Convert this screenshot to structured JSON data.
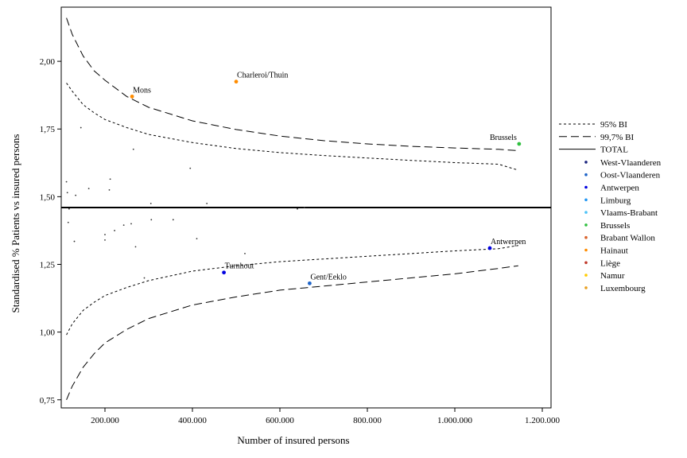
{
  "chart_data": {
    "type": "scatter",
    "xlabel": "Number of insured persons",
    "ylabel": "Standardised % Patients vs insured persons",
    "xlim": [
      100000,
      1220000
    ],
    "ylim": [
      0.72,
      2.2
    ],
    "x_ticks": [
      {
        "value": 200000,
        "label": "200.000"
      },
      {
        "value": 400000,
        "label": "400.000"
      },
      {
        "value": 600000,
        "label": "600.000"
      },
      {
        "value": 800000,
        "label": "800.000"
      },
      {
        "value": 1000000,
        "label": "1.000.000"
      },
      {
        "value": 1200000,
        "label": "1.200.000"
      }
    ],
    "y_ticks": [
      {
        "value": 0.75,
        "label": "0,75"
      },
      {
        "value": 1.0,
        "label": "1,00"
      },
      {
        "value": 1.25,
        "label": "1,25"
      },
      {
        "value": 1.5,
        "label": "1,50"
      },
      {
        "value": 1.75,
        "label": "1,75"
      },
      {
        "value": 2.0,
        "label": "2,00"
      }
    ],
    "total": 1.46,
    "limits": {
      "x": [
        112000,
        125000,
        150000,
        175000,
        200000,
        250000,
        300000,
        400000,
        500000,
        600000,
        700000,
        800000,
        900000,
        1000000,
        1100000,
        1145000
      ],
      "upper_95": [
        1.92,
        1.89,
        1.84,
        1.81,
        1.785,
        1.755,
        1.73,
        1.7,
        1.678,
        1.663,
        1.652,
        1.643,
        1.634,
        1.626,
        1.62,
        1.598
      ],
      "lower_95": [
        0.99,
        1.03,
        1.08,
        1.11,
        1.135,
        1.165,
        1.19,
        1.225,
        1.245,
        1.26,
        1.27,
        1.28,
        1.29,
        1.3,
        1.308,
        1.32
      ],
      "upper_997": [
        2.16,
        2.1,
        2.02,
        1.965,
        1.93,
        1.87,
        1.83,
        1.78,
        1.748,
        1.724,
        1.707,
        1.695,
        1.686,
        1.68,
        1.675,
        1.67
      ],
      "lower_997": [
        0.75,
        0.8,
        0.87,
        0.92,
        0.96,
        1.01,
        1.05,
        1.1,
        1.13,
        1.155,
        1.17,
        1.185,
        1.2,
        1.215,
        1.235,
        1.245
      ]
    },
    "legend": {
      "position": "right",
      "lines": [
        {
          "label": "95% BI",
          "style": "short-dash"
        },
        {
          "label": "99,7% BI",
          "style": "long-dash"
        },
        {
          "label": "TOTAL",
          "style": "solid"
        }
      ],
      "provinces": [
        {
          "label": "West-Vlaanderen",
          "color": "#1a237e"
        },
        {
          "label": "Oost-Vlaanderen",
          "color": "#1e64c8"
        },
        {
          "label": "Antwerpen",
          "color": "#0000e0"
        },
        {
          "label": "Limburg",
          "color": "#2196f3"
        },
        {
          "label": "Vlaams-Brabant",
          "color": "#4fc3f7"
        },
        {
          "label": "Brussels",
          "color": "#2fbf3f"
        },
        {
          "label": "Brabant Wallon",
          "color": "#d9622b"
        },
        {
          "label": "Hainaut",
          "color": "#ff8c00"
        },
        {
          "label": "Liège",
          "color": "#c0392b"
        },
        {
          "label": "Namur",
          "color": "#ffcc00"
        },
        {
          "label": "Luxembourg",
          "color": "#e8a020"
        }
      ]
    },
    "labeled_points": [
      {
        "label": "Charleroi/Thuin",
        "x": 500000,
        "y": 1.925,
        "color": "#ff8c00",
        "anchor": "end-right"
      },
      {
        "label": "Mons",
        "x": 262000,
        "y": 1.87,
        "color": "#ff8c00",
        "anchor": "right"
      },
      {
        "label": "Brussels",
        "x": 1147000,
        "y": 1.695,
        "color": "#2fbf3f",
        "anchor": "left"
      },
      {
        "label": "Antwerpen",
        "x": 1080000,
        "y": 1.31,
        "color": "#0000e0",
        "anchor": "right"
      },
      {
        "label": "Turnhout",
        "x": 472000,
        "y": 1.22,
        "color": "#0000e0",
        "anchor": "right"
      },
      {
        "label": "Gent/Eeklo",
        "x": 668000,
        "y": 1.18,
        "color": "#1e64c8",
        "anchor": "right"
      }
    ],
    "points": [
      {
        "x": 112000,
        "y": 1.555
      },
      {
        "x": 114000,
        "y": 1.515
      },
      {
        "x": 116000,
        "y": 1.405
      },
      {
        "x": 118000,
        "y": 1.455
      },
      {
        "x": 130000,
        "y": 1.335
      },
      {
        "x": 133000,
        "y": 1.505
      },
      {
        "x": 145000,
        "y": 1.755
      },
      {
        "x": 163000,
        "y": 1.53
      },
      {
        "x": 200000,
        "y": 1.36
      },
      {
        "x": 200000,
        "y": 1.34
      },
      {
        "x": 210000,
        "y": 1.525
      },
      {
        "x": 212000,
        "y": 1.565
      },
      {
        "x": 222000,
        "y": 1.375
      },
      {
        "x": 243000,
        "y": 1.395
      },
      {
        "x": 260000,
        "y": 1.4
      },
      {
        "x": 265000,
        "y": 1.675
      },
      {
        "x": 270000,
        "y": 1.315
      },
      {
        "x": 290000,
        "y": 1.2
      },
      {
        "x": 305000,
        "y": 1.475
      },
      {
        "x": 306000,
        "y": 1.415
      },
      {
        "x": 356000,
        "y": 1.415
      },
      {
        "x": 395000,
        "y": 1.605
      },
      {
        "x": 410000,
        "y": 1.345
      },
      {
        "x": 433000,
        "y": 1.475
      },
      {
        "x": 520000,
        "y": 1.29
      },
      {
        "x": 640000,
        "y": 1.455
      },
      {
        "x": 656000,
        "y": 1.46
      }
    ]
  }
}
